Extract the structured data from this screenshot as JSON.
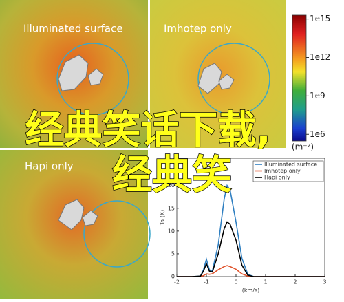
{
  "panels": [
    {
      "title": "Illuminated surface"
    },
    {
      "title": "Imhotep only"
    },
    {
      "title": "Hapi only"
    }
  ],
  "colorbar": {
    "label": "(m⁻²)",
    "log": true,
    "lim": [
      300000,
      2000000000000000
    ],
    "ticks": [
      {
        "value": 1000000000000000,
        "label": "1e15"
      },
      {
        "value": 1000000000000,
        "label": "1e12"
      },
      {
        "value": 1000000000,
        "label": "1e9"
      },
      {
        "value": 1000000,
        "label": "1e6"
      }
    ]
  },
  "overlay": [
    "经典笑话下载,",
    "经典笑"
  ],
  "chart_data": {
    "type": "line",
    "xlabel": "(km/s)",
    "ylabel": "Ta (K)",
    "x": [
      -2,
      -1.5,
      -1.2,
      -1.1,
      -1,
      -0.9,
      -0.8,
      -0.6,
      -0.4,
      -0.3,
      -0.2,
      0,
      0.2,
      0.4,
      0.6,
      1,
      2,
      3
    ],
    "series": [
      {
        "name": "Illuminated surface",
        "color": "#2f7fc1",
        "values": [
          0,
          0,
          0.1,
          1.5,
          3.8,
          1.5,
          1.2,
          7,
          17,
          20,
          19,
          12,
          4,
          0.5,
          0,
          0,
          0,
          0
        ]
      },
      {
        "name": "Imhotep only",
        "color": "#e0522a",
        "values": [
          0,
          0,
          0,
          0.2,
          0.6,
          0.5,
          0.6,
          1.5,
          2.2,
          2.4,
          2.2,
          1.6,
          0.6,
          0.1,
          0,
          0,
          0,
          0
        ]
      },
      {
        "name": "Hapi only",
        "color": "#000000",
        "values": [
          0,
          0,
          0.1,
          1.2,
          2.8,
          1.2,
          1.0,
          5,
          10.5,
          12,
          11.5,
          8,
          2.5,
          0.3,
          0,
          0,
          0,
          0
        ]
      }
    ],
    "xlim": [
      -2,
      3
    ],
    "ylim": [
      0,
      26
    ],
    "xticks": [
      -2,
      -1,
      0,
      1,
      2,
      3
    ],
    "yticks": [
      0,
      5,
      10,
      15,
      20
    ]
  }
}
